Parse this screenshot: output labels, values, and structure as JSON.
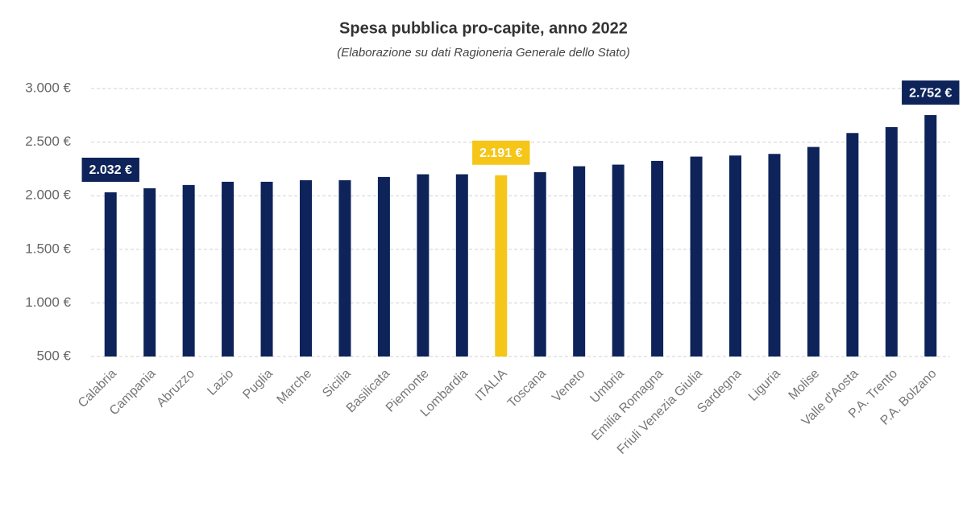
{
  "chart_data": {
    "type": "bar",
    "title": "Spesa pubblica pro-capite, anno 2022",
    "subtitle": "(Elaborazione su dati Ragioneria Generale dello Stato)",
    "categories": [
      "Calabria",
      "Campania",
      "Abruzzo",
      "Lazio",
      "Puglia",
      "Marche",
      "Sicilia",
      "Basilicata",
      "Piemonte",
      "Lombardia",
      "ITALIA",
      "Toscana",
      "Veneto",
      "Umbria",
      "Emilia Romagna",
      "Friuli Venezia Giulia",
      "Sardegna",
      "Liguria",
      "Molise",
      "Valle d'Aosta",
      "P.A. Trento",
      "P.A. Bolzano"
    ],
    "values": [
      2032,
      2070,
      2100,
      2130,
      2130,
      2145,
      2145,
      2175,
      2200,
      2200,
      2191,
      2220,
      2275,
      2290,
      2325,
      2365,
      2375,
      2390,
      2455,
      2585,
      2640,
      2752
    ],
    "value_labels": [
      "2.032 €",
      null,
      null,
      null,
      null,
      null,
      null,
      null,
      null,
      null,
      "2.191 €",
      null,
      null,
      null,
      null,
      null,
      null,
      null,
      null,
      null,
      null,
      "2.752 €"
    ],
    "colors": [
      "#0d2359",
      "#0d2359",
      "#0d2359",
      "#0d2359",
      "#0d2359",
      "#0d2359",
      "#0d2359",
      "#0d2359",
      "#0d2359",
      "#0d2359",
      "#f5c518",
      "#0d2359",
      "#0d2359",
      "#0d2359",
      "#0d2359",
      "#0d2359",
      "#0d2359",
      "#0d2359",
      "#0d2359",
      "#0d2359",
      "#0d2359",
      "#0d2359"
    ],
    "ylim": [
      500,
      3000
    ],
    "yticks": [
      {
        "value": 500,
        "label": "500 €"
      },
      {
        "value": 1000,
        "label": "1.000 €"
      },
      {
        "value": 1500,
        "label": "1.500 €"
      },
      {
        "value": 2000,
        "label": "2.000 €"
      },
      {
        "value": 2500,
        "label": "2.500 €"
      },
      {
        "value": 3000,
        "label": "3.000 €"
      }
    ],
    "grid": true
  }
}
